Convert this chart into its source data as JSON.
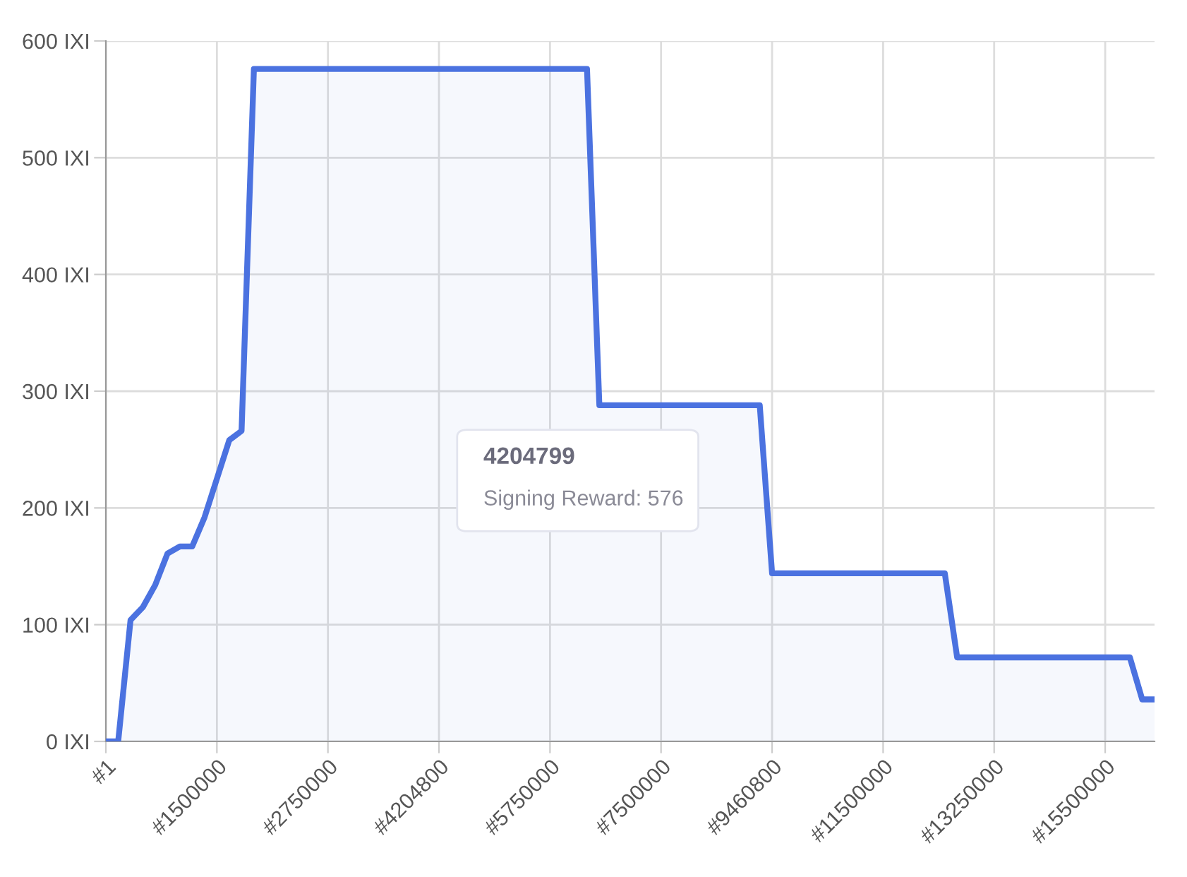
{
  "chart_data": {
    "type": "area",
    "categories": [
      "#1",
      null,
      null,
      null,
      null,
      null,
      null,
      null,
      null,
      "#1500000",
      null,
      null,
      null,
      null,
      null,
      null,
      null,
      null,
      "#2750000",
      null,
      null,
      null,
      null,
      null,
      null,
      null,
      null,
      "#4204800",
      null,
      null,
      null,
      null,
      null,
      null,
      null,
      null,
      "#5750000",
      null,
      null,
      null,
      null,
      null,
      null,
      null,
      null,
      "#7500000",
      null,
      null,
      null,
      null,
      null,
      null,
      null,
      null,
      "#9460800",
      null,
      null,
      null,
      null,
      null,
      null,
      null,
      null,
      "#11500000",
      null,
      null,
      null,
      null,
      null,
      null,
      null,
      null,
      "#13250000",
      null,
      null,
      null,
      null,
      null,
      null,
      null,
      null,
      "#15500000",
      null,
      null,
      null,
      null
    ],
    "series": [
      {
        "color": "#4b72e0",
        "values": [
          0,
          0,
          104,
          115,
          134,
          161,
          167,
          167,
          192,
          225,
          258,
          266,
          576,
          576,
          576,
          576,
          576,
          576,
          576,
          576,
          576,
          576,
          576,
          576,
          576,
          576,
          576,
          576,
          576,
          576,
          576,
          576,
          576,
          576,
          576,
          576,
          576,
          576,
          576,
          576,
          288,
          288,
          288,
          288,
          288,
          288,
          288,
          288,
          288,
          288,
          288,
          288,
          288,
          288,
          144,
          144,
          144,
          144,
          144,
          144,
          144,
          144,
          144,
          144,
          144,
          144,
          144,
          144,
          144,
          72,
          72,
          72,
          72,
          72,
          72,
          72,
          72,
          72,
          72,
          72,
          72,
          72,
          72,
          72,
          36,
          36
        ]
      }
    ],
    "ylim": [
      0,
      600
    ],
    "yticks": [
      {
        "value": 0,
        "label": "0 IXI"
      },
      {
        "value": 100,
        "label": "100 IXI"
      },
      {
        "value": 200,
        "label": "200 IXI"
      },
      {
        "value": 300,
        "label": "300 IXI"
      },
      {
        "value": 400,
        "label": "400 IXI"
      },
      {
        "value": 500,
        "label": "500 IXI"
      },
      {
        "value": 600,
        "label": "600 IXI"
      }
    ],
    "grid": true,
    "annotations": [
      "4204799",
      "Signing Reward: 576"
    ]
  }
}
